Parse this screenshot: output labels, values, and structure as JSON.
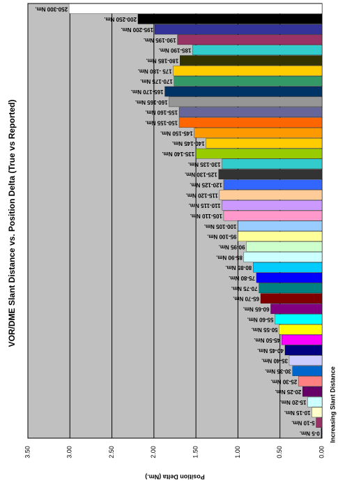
{
  "chart_data": {
    "type": "bar",
    "title": "VOR/DME Slant Distance vs. Position Delta (True vs Reported)",
    "x_label": "Increasing Slant Distance",
    "y_label": "Position Delta (Nm.)",
    "categories": [
      "0-5 Nm.",
      "5-10 Nm.",
      "10-15 Nm.",
      "15-20 Nm.",
      "20-25 Nm.",
      "25-30 Nm.",
      "30-35 Nm.",
      "35-40 Nm.",
      "40-45 Nm.",
      "45-50 Nm.",
      "50-55 Nm.",
      "55-60 Nm.",
      "60-65 Nm.",
      "65-70 Nm.",
      "70-75 Nm.",
      "75-80 Nm.",
      "80-85 Nm.",
      "85-90 Nm.",
      "90-95 Nm.",
      "95-100 Nm.",
      "100-105 Nm.",
      "105-110 Nm.",
      "110-115 Nm.",
      "115-120 Nm.",
      "120-125 Nm.",
      "125-130 Nm.",
      "130-135 Nm.",
      "135-140 Nm.",
      "140-145 Nm.",
      "145-150 Nm.",
      "150-155 Nm.",
      "155-160 Nm.",
      "160-165 Nm.",
      "165-170 Nm.",
      "170-175 Nm.",
      "175 -180 Nm.",
      "180-185 Nm.",
      "185-190 Nm.",
      "190-195 Nm.",
      "195-200 Nm.",
      "200-250 Nm.",
      "250-300 Nm."
    ],
    "values": [
      0.01,
      0.07,
      0.12,
      0.17,
      0.23,
      0.28,
      0.35,
      0.39,
      0.44,
      0.48,
      0.51,
      0.56,
      0.61,
      0.73,
      0.75,
      0.78,
      0.82,
      0.93,
      0.9,
      1.0,
      1.0,
      1.17,
      1.19,
      1.22,
      1.17,
      1.23,
      1.19,
      1.5,
      1.38,
      1.52,
      1.7,
      1.7,
      1.82,
      1.87,
      1.76,
      1.77,
      1.69,
      1.54,
      1.72,
      1.99,
      2.19,
      3.01
    ],
    "colors": [
      "#000080",
      "#993366",
      "#ffffcc",
      "#ccffff",
      "#660066",
      "#ff8080",
      "#0066cc",
      "#ccccff",
      "#000080",
      "#ff00ff",
      "#ffff00",
      "#00ffff",
      "#800080",
      "#800000",
      "#008080",
      "#0000ff",
      "#00ccff",
      "#ccffff",
      "#ccffcc",
      "#ffff99",
      "#99ccff",
      "#ff99cc",
      "#cc99ff",
      "#ffcc99",
      "#3366ff",
      "#333333",
      "#33cccc",
      "#99cc00",
      "#ffcc00",
      "#ff9900",
      "#ff6600",
      "#666699",
      "#969696",
      "#003366",
      "#339966",
      "#ffcc00",
      "#333300",
      "#33cccc",
      "#993366",
      "#333399",
      "#000000",
      "#ffffff"
    ],
    "ylim": [
      0,
      3.5
    ],
    "yticks": [
      {
        "value": 0,
        "label": "0.00"
      },
      {
        "value": 0.5,
        "label": "0.50"
      },
      {
        "value": 1,
        "label": "1.00"
      },
      {
        "value": 1.5,
        "label": "1.50"
      },
      {
        "value": 2,
        "label": "2.00"
      },
      {
        "value": 2.5,
        "label": "2.50"
      },
      {
        "value": 3,
        "label": "3.00"
      },
      {
        "value": 3.5,
        "label": "3.50"
      }
    ],
    "grid": true,
    "plot_color": "#c0c0c0"
  }
}
